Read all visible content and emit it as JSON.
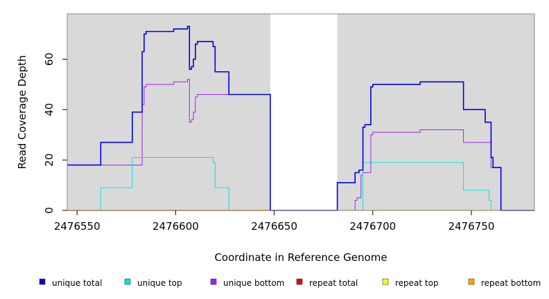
{
  "chart_data": {
    "type": "line",
    "title": "",
    "xlabel": "Coordinate in Reference Genome",
    "ylabel": "Read Coverage Depth",
    "xlim": [
      2476545,
      2476782
    ],
    "ylim": [
      0,
      78
    ],
    "x_ticks": [
      2476550,
      2476600,
      2476650,
      2476700,
      2476750
    ],
    "y_ticks": [
      0,
      20,
      40,
      60
    ],
    "shaded_regions": [
      [
        2476545,
        2476648
      ],
      [
        2476682,
        2476782
      ]
    ],
    "grid": false,
    "legend_position": "bottom",
    "legend": [
      {
        "name": "unique total",
        "color": "#0000dd"
      },
      {
        "name": "unique top",
        "color": "#00e5e5"
      },
      {
        "name": "unique bottom",
        "color": "#a020f0"
      },
      {
        "name": "repeat total",
        "color": "#ee0000"
      },
      {
        "name": "repeat top",
        "color": "#ffff00"
      },
      {
        "name": "repeat bottom",
        "color": "#ffa500"
      }
    ],
    "series": [
      {
        "name": "unique total",
        "color": "#0000dd",
        "stroke_width": 1.6,
        "points": [
          [
            2476545,
            18
          ],
          [
            2476562,
            18
          ],
          [
            2476562,
            27
          ],
          [
            2476578,
            27
          ],
          [
            2476578,
            39
          ],
          [
            2476583,
            39
          ],
          [
            2476583,
            63
          ],
          [
            2476584,
            63
          ],
          [
            2476584,
            70
          ],
          [
            2476585,
            70
          ],
          [
            2476585,
            71
          ],
          [
            2476599,
            71
          ],
          [
            2476599,
            72
          ],
          [
            2476606,
            72
          ],
          [
            2476606,
            73
          ],
          [
            2476607,
            73
          ],
          [
            2476607,
            56
          ],
          [
            2476608,
            56
          ],
          [
            2476608,
            57
          ],
          [
            2476609,
            57
          ],
          [
            2476609,
            60
          ],
          [
            2476610,
            60
          ],
          [
            2476610,
            66
          ],
          [
            2476611,
            66
          ],
          [
            2476611,
            67
          ],
          [
            2476619,
            67
          ],
          [
            2476619,
            65
          ],
          [
            2476620,
            65
          ],
          [
            2476620,
            55
          ],
          [
            2476627,
            55
          ],
          [
            2476627,
            46
          ],
          [
            2476648,
            46
          ],
          [
            2476648,
            0
          ],
          [
            2476682,
            0
          ],
          [
            2476682,
            11
          ],
          [
            2476691,
            11
          ],
          [
            2476691,
            15
          ],
          [
            2476693,
            15
          ],
          [
            2476693,
            16
          ],
          [
            2476695,
            16
          ],
          [
            2476695,
            33
          ],
          [
            2476696,
            33
          ],
          [
            2476696,
            34
          ],
          [
            2476699,
            34
          ],
          [
            2476699,
            49
          ],
          [
            2476700,
            49
          ],
          [
            2476700,
            50
          ],
          [
            2476724,
            50
          ],
          [
            2476724,
            51
          ],
          [
            2476746,
            51
          ],
          [
            2476746,
            40
          ],
          [
            2476757,
            40
          ],
          [
            2476757,
            35
          ],
          [
            2476760,
            35
          ],
          [
            2476760,
            21
          ],
          [
            2476761,
            21
          ],
          [
            2476761,
            17
          ],
          [
            2476765,
            17
          ],
          [
            2476765,
            0
          ],
          [
            2476782,
            0
          ]
        ]
      },
      {
        "name": "unique top",
        "color": "#00e5e5",
        "stroke_width": 1,
        "points": [
          [
            2476545,
            0
          ],
          [
            2476562,
            0
          ],
          [
            2476562,
            9
          ],
          [
            2476578,
            9
          ],
          [
            2476578,
            21
          ],
          [
            2476619,
            21
          ],
          [
            2476619,
            19
          ],
          [
            2476620,
            19
          ],
          [
            2476620,
            9
          ],
          [
            2476627,
            9
          ],
          [
            2476627,
            0
          ],
          [
            2476695,
            0
          ],
          [
            2476695,
            19
          ],
          [
            2476746,
            19
          ],
          [
            2476746,
            8
          ],
          [
            2476759,
            8
          ],
          [
            2476759,
            4
          ],
          [
            2476760,
            4
          ],
          [
            2476760,
            0
          ],
          [
            2476782,
            0
          ]
        ]
      },
      {
        "name": "unique bottom",
        "color": "#a020f0",
        "stroke_width": 1,
        "points": [
          [
            2476545,
            18
          ],
          [
            2476583,
            18
          ],
          [
            2476583,
            42
          ],
          [
            2476584,
            42
          ],
          [
            2476584,
            49
          ],
          [
            2476585,
            49
          ],
          [
            2476585,
            50
          ],
          [
            2476599,
            50
          ],
          [
            2476599,
            51
          ],
          [
            2476606,
            51
          ],
          [
            2476606,
            52
          ],
          [
            2476607,
            52
          ],
          [
            2476607,
            35
          ],
          [
            2476608,
            35
          ],
          [
            2476608,
            36
          ],
          [
            2476609,
            36
          ],
          [
            2476609,
            39
          ],
          [
            2476610,
            39
          ],
          [
            2476610,
            45
          ],
          [
            2476611,
            45
          ],
          [
            2476611,
            46
          ],
          [
            2476648,
            46
          ],
          [
            2476648,
            0
          ],
          [
            2476691,
            0
          ],
          [
            2476691,
            4
          ],
          [
            2476692,
            4
          ],
          [
            2476692,
            5
          ],
          [
            2476694,
            5
          ],
          [
            2476694,
            14
          ],
          [
            2476695,
            14
          ],
          [
            2476695,
            15
          ],
          [
            2476699,
            15
          ],
          [
            2476699,
            30
          ],
          [
            2476700,
            30
          ],
          [
            2476700,
            31
          ],
          [
            2476724,
            31
          ],
          [
            2476724,
            32
          ],
          [
            2476746,
            32
          ],
          [
            2476746,
            27
          ],
          [
            2476760,
            27
          ],
          [
            2476760,
            17
          ],
          [
            2476765,
            17
          ],
          [
            2476765,
            0
          ],
          [
            2476782,
            0
          ]
        ]
      },
      {
        "name": "repeat total",
        "color": "#ee0000",
        "stroke_width": 1.2,
        "points": [
          [
            2476545,
            0
          ],
          [
            2476648,
            0
          ]
        ]
      },
      {
        "name": "repeat top",
        "color": "#ffff00",
        "stroke_width": 1.2,
        "points": [
          [
            2476545,
            0
          ],
          [
            2476648,
            0
          ]
        ]
      },
      {
        "name": "repeat bottom",
        "color": "#ffa500",
        "stroke_width": 1.2,
        "points": [
          [
            2476545,
            0
          ],
          [
            2476648,
            0
          ],
          [
            2476648,
            0
          ],
          [
            2476682,
            0
          ],
          [
            2476682,
            0
          ],
          [
            2476782,
            0
          ]
        ]
      }
    ]
  }
}
